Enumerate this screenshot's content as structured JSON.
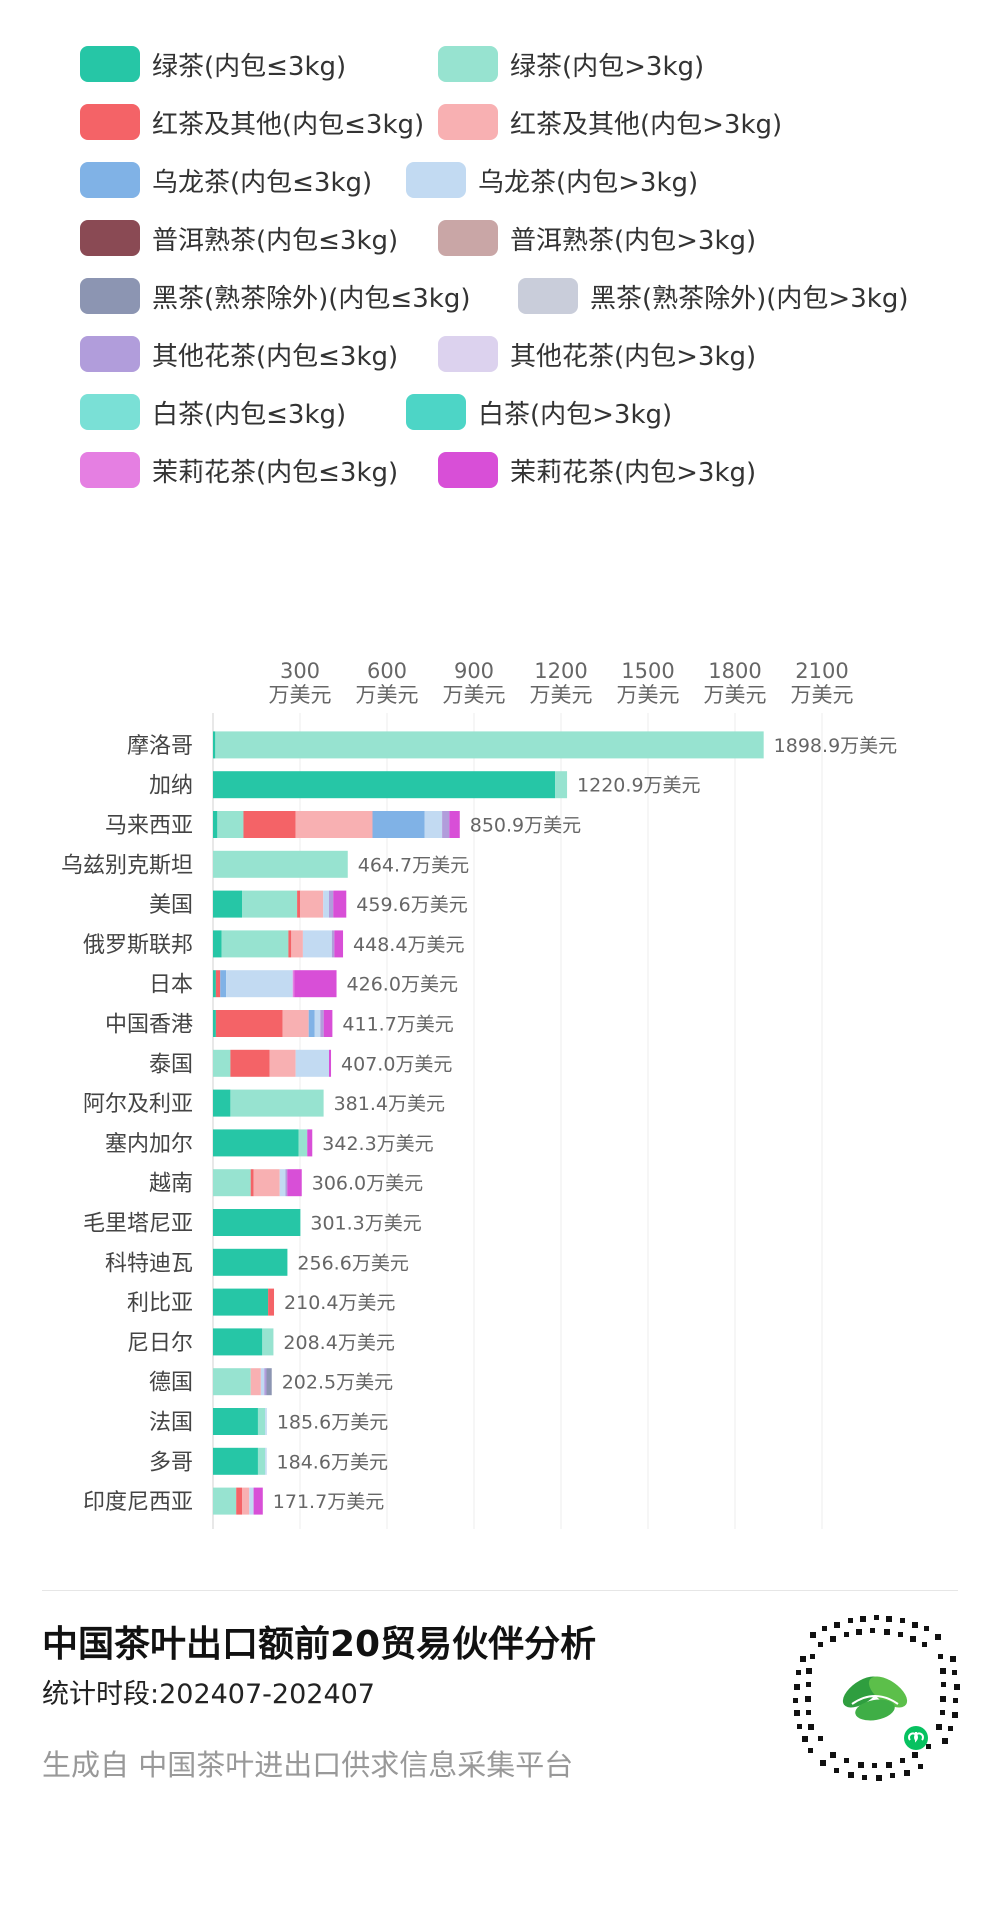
{
  "legend": {
    "rows": [
      [
        {
          "label": "绿茶(内包≤3kg)",
          "color": "#26c6a6"
        },
        {
          "label": "绿茶(内包>3kg)",
          "color": "#97e3d0"
        }
      ],
      [
        {
          "label": "红茶及其他(内包≤3kg)",
          "color": "#f46367"
        },
        {
          "label": "红茶及其他(内包>3kg)",
          "color": "#f8b0b2"
        }
      ],
      [
        {
          "label": "乌龙茶(内包≤3kg)",
          "color": "#80b2e6"
        },
        {
          "label": "乌龙茶(内包>3kg)",
          "color": "#c2daf2"
        }
      ],
      [
        {
          "label": "普洱熟茶(内包≤3kg)",
          "color": "#8a4a54"
        },
        {
          "label": "普洱熟茶(内包>3kg)",
          "color": "#c9a6a6"
        }
      ],
      [
        {
          "label": "黑茶(熟茶除外)(内包≤3kg)",
          "color": "#8c95b2"
        },
        {
          "label": "黑茶(熟茶除外)(内包>3kg)",
          "color": "#c9cdda"
        }
      ],
      [
        {
          "label": "其他花茶(内包≤3kg)",
          "color": "#b19ddb"
        },
        {
          "label": "其他花茶(内包>3kg)",
          "color": "#dcd2ee"
        }
      ],
      [
        {
          "label": "白茶(内包≤3kg)",
          "color": "#7ae0d6"
        },
        {
          "label": "白茶(内包>3kg)",
          "color": "#4dd5c6"
        }
      ],
      [
        {
          "label": "茉莉花茶(内包≤3kg)",
          "color": "#e57fe2"
        },
        {
          "label": "茉莉花茶(内包>3kg)",
          "color": "#d84fd7"
        }
      ]
    ]
  },
  "chart_data": {
    "type": "bar",
    "orientation": "horizontal",
    "stacked": true,
    "x_ticks": [
      300,
      600,
      900,
      1200,
      1500,
      1800,
      2100
    ],
    "x_tick_unit": "万美元",
    "xlim": [
      0,
      2200
    ],
    "value_suffix": "万美元",
    "categories": [
      "摩洛哥",
      "加纳",
      "马来西亚",
      "乌兹别克斯坦",
      "美国",
      "俄罗斯联邦",
      "日本",
      "中国香港",
      "泰国",
      "阿尔及利亚",
      "塞内加尔",
      "越南",
      "毛里塔尼亚",
      "科特迪瓦",
      "利比亚",
      "尼日尔",
      "德国",
      "法国",
      "多哥",
      "印度尼西亚"
    ],
    "totals": [
      "1898.9",
      "1220.9",
      "850.9",
      "464.7",
      "459.6",
      "448.4",
      "426.0",
      "411.7",
      "407.0",
      "381.4",
      "342.3",
      "306.0",
      "301.3",
      "256.6",
      "210.4",
      "208.4",
      "202.5",
      "185.6",
      "184.6",
      "171.7"
    ],
    "segments": [
      [
        [
          "#26c6a6",
          8
        ],
        [
          "#97e3d0",
          1890.9
        ]
      ],
      [
        [
          "#26c6a6",
          1180
        ],
        [
          "#97e3d0",
          40.9
        ]
      ],
      [
        [
          "#26c6a6",
          15
        ],
        [
          "#97e3d0",
          90
        ],
        [
          "#f46367",
          180
        ],
        [
          "#f8b0b2",
          265
        ],
        [
          "#80b2e6",
          180
        ],
        [
          "#c2daf2",
          60
        ],
        [
          "#b19ddb",
          25
        ],
        [
          "#d84fd7",
          35.9
        ]
      ],
      [
        [
          "#97e3d0",
          464.7
        ]
      ],
      [
        [
          "#26c6a6",
          100
        ],
        [
          "#97e3d0",
          190
        ],
        [
          "#f46367",
          10
        ],
        [
          "#f8b0b2",
          80
        ],
        [
          "#c2daf2",
          20
        ],
        [
          "#b19ddb",
          14.6
        ],
        [
          "#d84fd7",
          45
        ]
      ],
      [
        [
          "#26c6a6",
          30
        ],
        [
          "#97e3d0",
          230
        ],
        [
          "#f46367",
          10
        ],
        [
          "#f8b0b2",
          40
        ],
        [
          "#c2daf2",
          100
        ],
        [
          "#b19ddb",
          8.4
        ],
        [
          "#d84fd7",
          30
        ]
      ],
      [
        [
          "#26c6a6",
          10
        ],
        [
          "#f46367",
          15
        ],
        [
          "#80b2e6",
          20
        ],
        [
          "#c2daf2",
          230
        ],
        [
          "#e57fe2",
          6
        ],
        [
          "#d84fd7",
          145
        ]
      ],
      [
        [
          "#26c6a6",
          10
        ],
        [
          "#f46367",
          230
        ],
        [
          "#f8b0b2",
          90
        ],
        [
          "#80b2e6",
          20
        ],
        [
          "#c2daf2",
          20
        ],
        [
          "#b19ddb",
          11.7
        ],
        [
          "#d84fd7",
          30
        ]
      ],
      [
        [
          "#97e3d0",
          60
        ],
        [
          "#f46367",
          135
        ],
        [
          "#f8b0b2",
          90
        ],
        [
          "#c2daf2",
          115
        ],
        [
          "#d84fd7",
          7
        ]
      ],
      [
        [
          "#26c6a6",
          60
        ],
        [
          "#97e3d0",
          321.4
        ]
      ],
      [
        [
          "#26c6a6",
          295
        ],
        [
          "#97e3d0",
          30
        ],
        [
          "#d84fd7",
          17.3
        ]
      ],
      [
        [
          "#97e3d0",
          130
        ],
        [
          "#f46367",
          10
        ],
        [
          "#f8b0b2",
          90
        ],
        [
          "#c2daf2",
          20
        ],
        [
          "#b19ddb",
          6
        ],
        [
          "#d84fd7",
          50
        ]
      ],
      [
        [
          "#26c6a6",
          301.3
        ]
      ],
      [
        [
          "#26c6a6",
          256.6
        ]
      ],
      [
        [
          "#26c6a6",
          190
        ],
        [
          "#f46367",
          20.4
        ]
      ],
      [
        [
          "#26c6a6",
          170
        ],
        [
          "#97e3d0",
          38.4
        ]
      ],
      [
        [
          "#97e3d0",
          130
        ],
        [
          "#f8b0b2",
          35
        ],
        [
          "#c2daf2",
          12
        ],
        [
          "#b19ddb",
          7.5
        ],
        [
          "#8c95b2",
          18
        ]
      ],
      [
        [
          "#26c6a6",
          155
        ],
        [
          "#97e3d0",
          25
        ],
        [
          "#c2daf2",
          5.6
        ]
      ],
      [
        [
          "#26c6a6",
          155
        ],
        [
          "#97e3d0",
          25
        ],
        [
          "#c2daf2",
          4.6
        ]
      ],
      [
        [
          "#97e3d0",
          80
        ],
        [
          "#f46367",
          20
        ],
        [
          "#f8b0b2",
          25
        ],
        [
          "#c2daf2",
          15
        ],
        [
          "#d84fd7",
          31.7
        ]
      ]
    ]
  },
  "footer": {
    "title": "中国茶叶出口额前20贸易伙伴分析",
    "period": "统计时段:202407-202407",
    "source": "生成自 中国茶叶进出口供求信息采集平台"
  }
}
